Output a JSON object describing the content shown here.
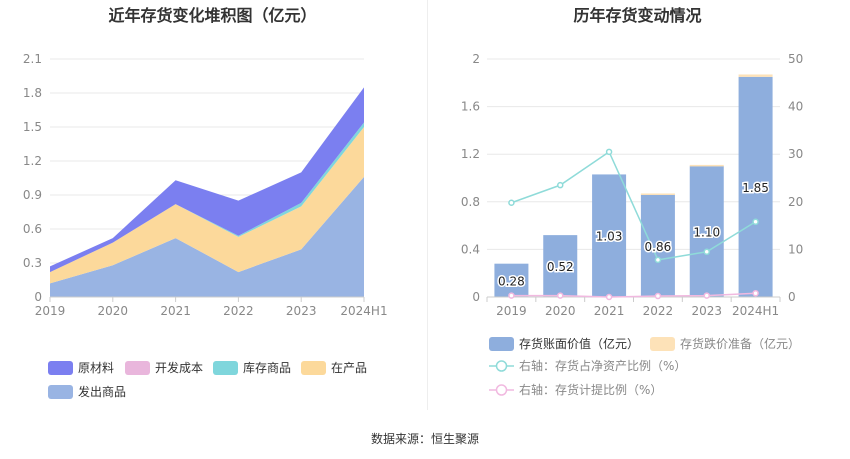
{
  "left_title": "近年存货变化堆积图（亿元）",
  "right_title": "历年存货变动情况",
  "source_text": "数据来源：恒生聚源",
  "colors": {
    "raw": "#7b7ff0",
    "dev": "#e9b6dc",
    "goods": "#7fd6dc",
    "wip": "#fcd99b",
    "shipped": "#99b4e3",
    "bar": "#8eaedd",
    "provision": "#fde2b8",
    "ratio_net": "#8fdbd9",
    "ratio_provision": "#f1b9e0",
    "grid": "#e8e8e8",
    "axis_text": "#888888"
  },
  "chart_data": [
    {
      "type": "area",
      "stacked": true,
      "title": "近年存货变化堆积图（亿元）",
      "categories": [
        "2019",
        "2020",
        "2021",
        "2022",
        "2023",
        "2024H1"
      ],
      "ylim": [
        0,
        2.1
      ],
      "yticks": [
        "0",
        "0.3",
        "0.6",
        "0.9",
        "1.2",
        "1.5",
        "1.8",
        "2.1"
      ],
      "series": [
        {
          "key": "shipped",
          "name": "发出商品",
          "values": [
            0.12,
            0.28,
            0.52,
            0.22,
            0.42,
            1.06
          ]
        },
        {
          "key": "wip",
          "name": "在产品",
          "values": [
            0.1,
            0.2,
            0.3,
            0.31,
            0.38,
            0.44
          ]
        },
        {
          "key": "goods",
          "name": "库存商品",
          "values": [
            0.0,
            0.0,
            0.0,
            0.01,
            0.03,
            0.04
          ]
        },
        {
          "key": "dev",
          "name": "开发成本",
          "values": [
            0.0,
            0.0,
            0.0,
            0.0,
            0.0,
            0.0
          ]
        },
        {
          "key": "raw",
          "name": "原材料",
          "values": [
            0.05,
            0.04,
            0.21,
            0.31,
            0.27,
            0.31
          ]
        }
      ],
      "legend": [
        "原材料",
        "开发成本",
        "库存商品",
        "在产品",
        "发出商品"
      ],
      "legend_position": "bottom"
    },
    {
      "type": "bar",
      "title": "历年存货变动情况",
      "categories": [
        "2019",
        "2020",
        "2021",
        "2022",
        "2023",
        "2024H1"
      ],
      "ylim_left": [
        0,
        2
      ],
      "yticks_left": [
        "0",
        "0.4",
        "0.8",
        "1.2",
        "1.6",
        "2"
      ],
      "ylim_right": [
        0,
        50
      ],
      "yticks_right": [
        "0",
        "10",
        "20",
        "30",
        "40",
        "50"
      ],
      "bar_series": {
        "name": "存货账面价值（亿元）",
        "values": [
          0.28,
          0.52,
          1.03,
          0.86,
          1.1,
          1.85
        ]
      },
      "bar_labels": [
        "0.28",
        "0.52",
        "1.03",
        "0.86",
        "1.10",
        "1.85"
      ],
      "stack_series": {
        "name": "存货跌价准备（亿元）",
        "values": [
          0.0,
          0.0,
          0.0,
          0.01,
          0.01,
          0.02
        ]
      },
      "line_series": [
        {
          "key": "ratio_net",
          "name": "右轴：存货占净资产比例（%）",
          "values": [
            19.8,
            23.5,
            30.5,
            7.8,
            9.5,
            15.8
          ]
        },
        {
          "key": "ratio_provision",
          "name": "右轴：存货计提比例（%）",
          "values": [
            0.3,
            0.3,
            0.0,
            0.2,
            0.3,
            0.8
          ]
        }
      ],
      "legend": [
        "存货账面价值（亿元）",
        "存货跌价准备（亿元）",
        "右轴：存货占净资产比例（%）",
        "右轴：存货计提比例（%）"
      ],
      "legend_position": "bottom"
    }
  ]
}
